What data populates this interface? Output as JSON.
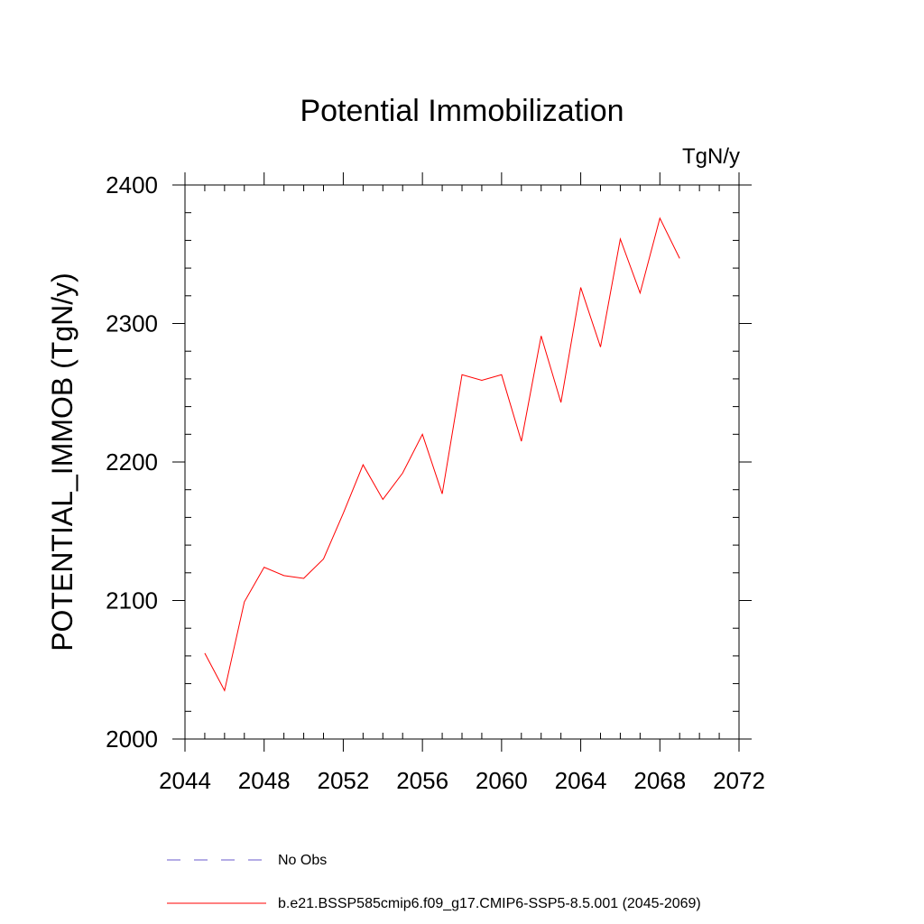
{
  "chart_data": {
    "type": "line",
    "title": "Potential Immobilization",
    "units": "TgN/y",
    "ylabel": "POTENTIAL_IMMOB  (TgN/y)",
    "xlabel": "",
    "xlim": [
      2044,
      2072
    ],
    "ylim": [
      2000,
      2400
    ],
    "x_ticks": [
      2044,
      2048,
      2052,
      2056,
      2060,
      2064,
      2068,
      2072
    ],
    "y_ticks": [
      2000,
      2100,
      2200,
      2300,
      2400
    ],
    "x_tick_labels": [
      "2044",
      "2048",
      "2052",
      "2056",
      "2060",
      "2064",
      "2068",
      "2072"
    ],
    "y_tick_labels": [
      "2000",
      "2100",
      "2200",
      "2300",
      "2400"
    ],
    "grid": false,
    "series": [
      {
        "name": "b.e21.BSSP585cmip6.f09_g17.CMIP6-SSP5-8.5.001 (2045-2069)",
        "color": "#ff0000",
        "x": [
          2045,
          2046,
          2047,
          2048,
          2049,
          2050,
          2051,
          2052,
          2053,
          2054,
          2055,
          2056,
          2057,
          2058,
          2059,
          2060,
          2061,
          2062,
          2063,
          2064,
          2065,
          2066,
          2067,
          2068,
          2069
        ],
        "values": [
          2062,
          2035,
          2099,
          2124,
          2118,
          2116,
          2130,
          2163,
          2198,
          2173,
          2192,
          2220,
          2177,
          2263,
          2259,
          2263,
          2215,
          2291,
          2243,
          2326,
          2283,
          2361,
          2322,
          2376,
          2347
        ]
      }
    ],
    "legend": {
      "position": "bottom-left",
      "entries": [
        {
          "label": "No Obs",
          "color": "#6a5acd",
          "style": "dashed"
        },
        {
          "label": "b.e21.BSSP585cmip6.f09_g17.CMIP6-SSP5-8.5.001 (2045-2069)",
          "color": "#ff0000",
          "style": "solid"
        }
      ]
    }
  }
}
